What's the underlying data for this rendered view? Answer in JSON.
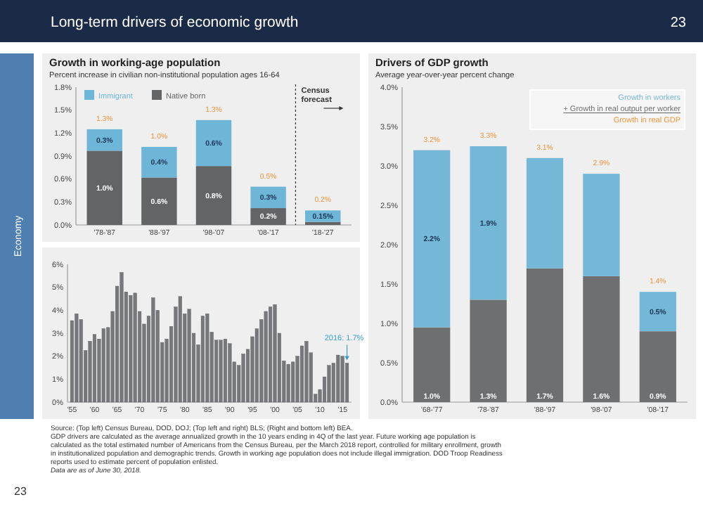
{
  "chart_data": [
    {
      "type": "bar",
      "title": "Growth in working-age population",
      "subtitle": "Percent increase in civilian non-institutional population ages 16-64",
      "categories": [
        "'78-'87",
        "'88-'97",
        "'98-'07",
        "'08-'17",
        "'18-'27"
      ],
      "stacked": true,
      "legend": "top left",
      "series": [
        {
          "name": "Native born",
          "color": "#636466",
          "values": [
            0.97,
            0.62,
            0.77,
            0.22,
            0.04
          ],
          "value_labels": [
            "1.0%",
            "0.6%",
            "0.8%",
            "0.2%",
            null
          ]
        },
        {
          "name": "Immigrant",
          "color": "#6db6d8",
          "values": [
            0.28,
            0.4,
            0.6,
            0.28,
            0.15
          ],
          "value_labels": [
            "0.3%",
            "0.4%",
            "0.6%",
            "0.3%",
            "0.15%"
          ]
        }
      ],
      "totals": [
        "1.3%",
        "1.0%",
        "1.3%",
        "0.5%",
        "0.2%"
      ],
      "ylim": [
        0,
        1.8
      ],
      "yticks": [
        {
          "value": 0,
          "label": "0.0%"
        },
        {
          "value": 0.3,
          "label": "0.3%"
        },
        {
          "value": 0.6,
          "label": "0.6%"
        },
        {
          "value": 0.9,
          "label": "0.9%"
        },
        {
          "value": 1.2,
          "label": "1.2%"
        },
        {
          "value": 1.5,
          "label": "1.5%"
        },
        {
          "value": 1.8,
          "label": "1.8%"
        }
      ],
      "annotations": [
        "Census forecast"
      ]
    },
    {
      "type": "bar",
      "title": "Drivers of GDP growth",
      "subtitle": "Average year-over-year percent change",
      "categories": [
        "'68-'77",
        "'78-'87",
        "'88-'97",
        "'98-'07",
        "'08-'17"
      ],
      "stacked": true,
      "legend": "top right",
      "series": [
        {
          "name": "+ Growth in real output per worker",
          "color": "#6e6f71",
          "values": [
            0.95,
            1.3,
            1.7,
            1.6,
            0.9
          ],
          "value_labels": [
            "1.0%",
            "1.3%",
            "1.7%",
            "1.6%",
            "0.9%"
          ]
        },
        {
          "name": "Growth in workers",
          "color": "#74b7d6",
          "values": [
            2.25,
            1.95,
            1.4,
            1.3,
            0.5
          ],
          "value_labels": [
            "2.2%",
            "1.9%",
            null,
            null,
            "0.5%"
          ]
        }
      ],
      "totals": [
        "3.2%",
        "3.3%",
        "3.1%",
        "2.9%",
        "1.4%"
      ],
      "ylim": [
        0,
        4
      ],
      "yticks": [
        {
          "value": 0,
          "label": "0.0%"
        },
        {
          "value": 0.5,
          "label": "0.5%"
        },
        {
          "value": 1,
          "label": "1.0%"
        },
        {
          "value": 1.5,
          "label": "1.5%"
        },
        {
          "value": 2,
          "label": "2.0%"
        },
        {
          "value": 2.5,
          "label": "2.5%"
        },
        {
          "value": 3,
          "label": "3.0%"
        },
        {
          "value": 3.5,
          "label": "3.5%"
        },
        {
          "value": 4,
          "label": "4.0%"
        }
      ],
      "annotations": [
        "Growth in real GDP"
      ]
    },
    {
      "type": "bar",
      "color": "#77787b",
      "x": [
        1955,
        1956,
        1957,
        1958,
        1959,
        1960,
        1961,
        1962,
        1963,
        1964,
        1965,
        1966,
        1967,
        1968,
        1969,
        1970,
        1971,
        1972,
        1973,
        1974,
        1975,
        1976,
        1977,
        1978,
        1979,
        1980,
        1981,
        1982,
        1983,
        1984,
        1985,
        1986,
        1987,
        1988,
        1989,
        1990,
        1991,
        1992,
        1993,
        1994,
        1995,
        1996,
        1997,
        1998,
        1999,
        2000,
        2001,
        2002,
        2003,
        2004,
        2005,
        2006,
        2007,
        2008,
        2009,
        2010,
        2011,
        2012,
        2013,
        2014,
        2015,
        2016
      ],
      "values": [
        3.55,
        3.85,
        3.6,
        2.25,
        2.65,
        2.95,
        2.75,
        3.2,
        3.25,
        3.95,
        5.05,
        5.65,
        4.8,
        4.65,
        4.75,
        3.95,
        3.4,
        3.75,
        4.55,
        4.0,
        2.6,
        2.75,
        3.3,
        4.15,
        4.6,
        3.85,
        4.05,
        3.0,
        2.5,
        3.75,
        3.85,
        3.05,
        2.7,
        2.7,
        2.75,
        2.55,
        1.75,
        1.6,
        2.1,
        2.3,
        2.85,
        3.2,
        3.6,
        3.95,
        4.15,
        4.25,
        3.0,
        1.8,
        1.65,
        1.75,
        2.0,
        2.45,
        2.65,
        2.15,
        0.35,
        0.55,
        1.1,
        1.6,
        1.7,
        2.05,
        2.0,
        1.7
      ],
      "xlim": [
        1954,
        2017
      ],
      "xticks": [
        {
          "value": 1955,
          "label": "'55"
        },
        {
          "value": 1960,
          "label": "'60"
        },
        {
          "value": 1965,
          "label": "'65"
        },
        {
          "value": 1970,
          "label": "'70"
        },
        {
          "value": 1975,
          "label": "'75"
        },
        {
          "value": 1980,
          "label": "'80"
        },
        {
          "value": 1985,
          "label": "'85"
        },
        {
          "value": 1990,
          "label": "'90"
        },
        {
          "value": 1995,
          "label": "'95"
        },
        {
          "value": 2000,
          "label": "'00"
        },
        {
          "value": 2005,
          "label": "'05"
        },
        {
          "value": 2010,
          "label": "'10"
        },
        {
          "value": 2015,
          "label": "'15"
        }
      ],
      "ylim": [
        0,
        6
      ],
      "yticks": [
        {
          "value": 0,
          "label": "0%"
        },
        {
          "value": 1,
          "label": "1%"
        },
        {
          "value": 2,
          "label": "2%"
        },
        {
          "value": 3,
          "label": "3%"
        },
        {
          "value": 4,
          "label": "4%"
        },
        {
          "value": 5,
          "label": "5%"
        },
        {
          "value": 6,
          "label": "6%"
        }
      ],
      "annotations": [
        {
          "text": "2016: 1.7%",
          "x": 2016,
          "y": 1.7
        }
      ]
    },
    {
      "type": "other",
      "title": "Long-term drivers of economic growth",
      "annotations": [
        "23",
        "Economy",
        "Source: (Top left) Census Bureau, DOD, DOJ; (Top left and right) BLS; (Right and bottom left) BEA.",
        "GDP drivers are calculated as the average annualized growth in the 10 years ending in 4Q of the last year. Future working age population is",
        "calculated as the total estimated number of Americans from the Census Bureau, per the March 2018 report, controlled for military enrollment, growth",
        "in institutionalized population and demographic trends. Growth in working age population does not include illegal immigration. DOD Troop Readiness",
        "reports used to estimate percent of population enlisted.",
        "Data are as of June 30, 2018.",
        "23"
      ]
    }
  ]
}
